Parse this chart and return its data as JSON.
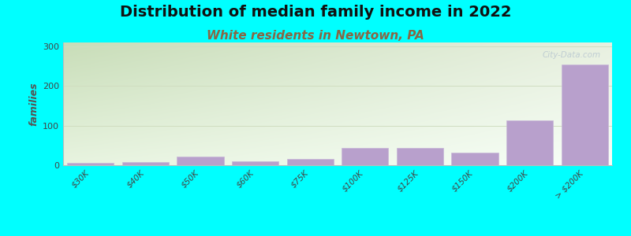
{
  "title": "Distribution of median family income in 2022",
  "subtitle": "White residents in Newtown, PA",
  "categories": [
    "$30K",
    "$40K",
    "$50K",
    "$60K",
    "$75K",
    "$100K",
    "$125K",
    "$150K",
    "$200K",
    "> $200K"
  ],
  "values": [
    5,
    8,
    22,
    10,
    16,
    44,
    44,
    32,
    113,
    254
  ],
  "bar_color": "#b8a0cc",
  "bar_edge_color": "#c8b8d8",
  "ylabel": "families",
  "ylim": [
    0,
    310
  ],
  "yticks": [
    0,
    100,
    200,
    300
  ],
  "background_color": "#00ffff",
  "gradient_color_topleft": "#c8ddb8",
  "gradient_color_topright": "#e8f0e0",
  "gradient_color_bottomleft": "#e8f4e0",
  "gradient_color_bottomright": "#f8fff8",
  "grid_color": "#d0ddc0",
  "title_fontsize": 14,
  "subtitle_fontsize": 11,
  "subtitle_color": "#886644",
  "watermark": "City-Data.com",
  "title_color": "#111111"
}
